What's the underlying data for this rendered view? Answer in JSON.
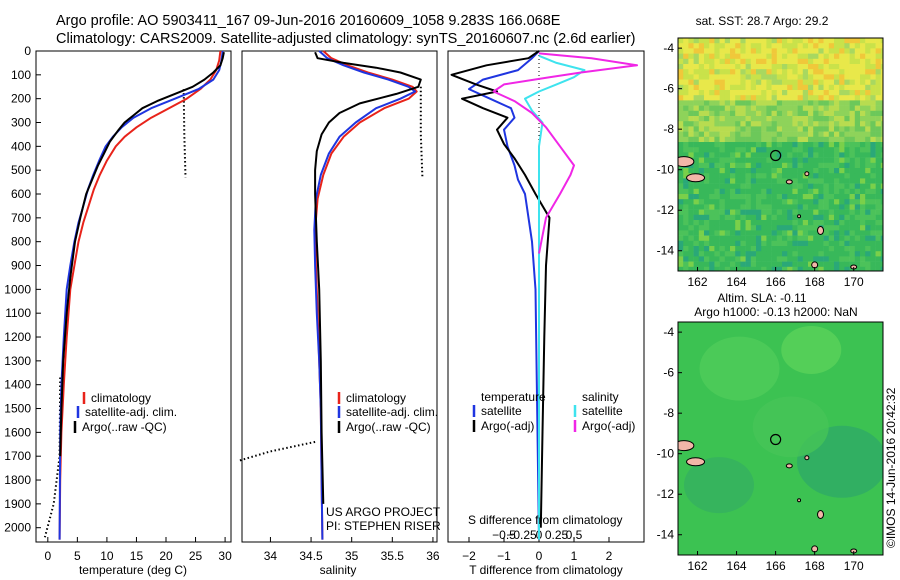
{
  "header": {
    "line1": "Argo profile: AO 5903411_167 09-Jun-2016 20160609_1058 9.283S 166.068E",
    "line2": "Climatology: CARS2009. Satellite-adjusted climatology: synTS_20160607.nc (2.6d earlier)"
  },
  "colors": {
    "climatology": "#e8231a",
    "satellite": "#1f35e0",
    "argo": "#000000",
    "sat_sal": "#3ee3ee",
    "argo_sal": "#f026e6"
  },
  "chart_data": [
    {
      "id": "temperature",
      "type": "line",
      "xlabel": "temperature (deg C)",
      "ylabel": "",
      "xlim": [
        -2,
        31
      ],
      "ylim": [
        2060,
        0
      ],
      "xticks": [
        0,
        5,
        10,
        15,
        20,
        25,
        30
      ],
      "yticks": [
        0,
        100,
        200,
        300,
        400,
        500,
        600,
        700,
        800,
        900,
        1000,
        1100,
        1200,
        1300,
        1400,
        1500,
        1600,
        1700,
        1800,
        1900,
        2000
      ],
      "legend": [
        "climatology",
        "satellite-adj. clim.",
        "Argo(..raw -QC)"
      ],
      "series": [
        {
          "name": "climatology",
          "x": [
            29.2,
            29.0,
            28.5,
            27.5,
            25.8,
            23.5,
            20.5,
            17.5,
            15.0,
            13.0,
            11.5,
            10.0,
            8.8,
            7.8,
            6.9,
            6.0,
            5.2,
            4.5,
            3.8,
            3.2,
            2.7,
            2.3,
            2.1,
            2.0
          ],
          "y": [
            0,
            40,
            80,
            120,
            160,
            200,
            240,
            280,
            320,
            360,
            400,
            460,
            520,
            580,
            650,
            720,
            800,
            900,
            1000,
            1200,
            1400,
            1600,
            1800,
            2050
          ]
        },
        {
          "name": "satellite-adj. clim.",
          "x": [
            29.6,
            29.4,
            29.0,
            28.0,
            25.5,
            21.5,
            17.5,
            14.5,
            12.5,
            11.0,
            9.8,
            8.7,
            7.7,
            6.8,
            6.0,
            5.2,
            4.5,
            3.8,
            3.2,
            2.7,
            2.3,
            2.1,
            2.0
          ],
          "y": [
            0,
            40,
            80,
            120,
            160,
            200,
            240,
            280,
            320,
            360,
            400,
            460,
            520,
            580,
            650,
            720,
            800,
            900,
            1000,
            1200,
            1400,
            1600,
            2050
          ]
        },
        {
          "name": "Argo(..raw -QC)",
          "x": [
            29.8,
            29.6,
            29.2,
            28.0,
            26.5,
            24.5,
            21.5,
            18.5,
            16.0,
            14.5,
            13.0,
            12.0,
            10.5,
            9.5,
            8.5,
            7.5,
            6.5,
            5.5,
            4.6,
            3.8,
            3.2,
            2.6,
            2.3,
            2.1
          ],
          "y": [
            5,
            30,
            60,
            90,
            120,
            150,
            180,
            210,
            240,
            270,
            300,
            330,
            380,
            430,
            480,
            540,
            600,
            700,
            800,
            950,
            1100,
            1300,
            1500,
            1700
          ]
        }
      ],
      "dotted": [
        {
          "x": [
            23.0,
            23.1,
            23.3
          ],
          "y": [
            160,
            350,
            530
          ]
        },
        {
          "x": [
            2.1,
            2.0,
            1.0,
            -0.5
          ],
          "y": [
            1370,
            1700,
            1900,
            2040
          ]
        }
      ]
    },
    {
      "id": "salinity",
      "type": "line",
      "xlabel": "salinity",
      "ylabel": "",
      "xlim": [
        33.65,
        36.05
      ],
      "ylim": [
        2060,
        0
      ],
      "xticks": [
        34,
        34.5,
        35,
        35.5,
        36
      ],
      "legend": [
        "climatology",
        "satellite-adj. clim.",
        "Argo(..raw -QC)"
      ],
      "annotation": [
        "US ARGO PROJECT",
        "PI: STEPHEN RISER"
      ],
      "series": [
        {
          "name": "climatology",
          "x": [
            34.65,
            34.75,
            34.95,
            35.2,
            35.5,
            35.75,
            35.8,
            35.7,
            35.4,
            35.1,
            34.9,
            34.75,
            34.65,
            34.58,
            34.55,
            34.56,
            34.58,
            34.6,
            34.62,
            34.63,
            34.64
          ],
          "y": [
            0,
            30,
            60,
            90,
            120,
            150,
            170,
            200,
            240,
            300,
            360,
            430,
            520,
            620,
            750,
            900,
            1100,
            1300,
            1500,
            1800,
            2050
          ]
        },
        {
          "name": "satellite-adj. clim.",
          "x": [
            34.6,
            34.7,
            34.9,
            35.15,
            35.45,
            35.7,
            35.78,
            35.6,
            35.3,
            35.05,
            34.85,
            34.72,
            34.62,
            34.56,
            34.54,
            34.55,
            34.57,
            34.6,
            34.62,
            34.63,
            34.64
          ],
          "y": [
            0,
            30,
            60,
            90,
            120,
            150,
            170,
            200,
            240,
            300,
            360,
            430,
            520,
            620,
            750,
            900,
            1100,
            1300,
            1500,
            1800,
            2050
          ]
        },
        {
          "name": "Argo(..raw -QC)",
          "x": [
            34.55,
            34.58,
            34.9,
            35.3,
            35.6,
            35.85,
            35.82,
            35.55,
            35.1,
            34.85,
            34.72,
            34.63,
            34.57,
            34.55,
            34.55,
            34.57,
            34.6,
            34.62,
            34.63,
            34.65
          ],
          "y": [
            5,
            30,
            50,
            70,
            90,
            120,
            150,
            180,
            220,
            260,
            300,
            350,
            420,
            500,
            600,
            800,
            1000,
            1300,
            1600,
            1900
          ]
        }
      ],
      "dotted": [
        {
          "x": [
            35.85,
            35.85,
            35.87
          ],
          "y": [
            150,
            350,
            530
          ]
        },
        {
          "x": [
            34.55,
            34.0,
            33.6
          ],
          "y": [
            1640,
            1680,
            1720
          ]
        }
      ]
    },
    {
      "id": "difference",
      "type": "line",
      "xlabel": "T difference from climatology",
      "ylabel": "",
      "title_bottom": "S difference from climatology",
      "xlim": [
        -2.6,
        3.0
      ],
      "ylim": [
        2060,
        0
      ],
      "xticks": [
        -2,
        -1,
        0,
        1,
        2
      ],
      "xtick_labels": [
        "−2",
        "−1",
        "0",
        "1",
        "2"
      ],
      "top_ticks": [
        "−0.5",
        "−0.25",
        "0",
        "0.25",
        "0.5"
      ],
      "legend": [
        "temperature",
        "satellite",
        "Argo(-adj)",
        "salinity",
        "satellite",
        "Argo(-adj)"
      ],
      "series": [
        {
          "name": "temperature satellite",
          "x": [
            0,
            -0.2,
            -0.6,
            -1.6,
            -2.0,
            -1.4,
            -0.8,
            -0.7,
            -1.0,
            -0.9,
            -0.7,
            -0.6,
            -0.4,
            -0.3,
            -0.2,
            -0.1,
            0
          ],
          "y": [
            0,
            30,
            80,
            120,
            160,
            200,
            240,
            280,
            330,
            400,
            480,
            540,
            600,
            700,
            800,
            1000,
            2050
          ]
        },
        {
          "name": "temperature Argo(-adj)",
          "x": [
            0,
            -0.3,
            -1.5,
            -2.5,
            -1.8,
            -1.2,
            -2.2,
            -1.6,
            -0.9,
            -1.2,
            -1.0,
            -0.7,
            -0.4,
            -0.1,
            0.3,
            0.2,
            0.15,
            0.1,
            0.05
          ],
          "y": [
            0,
            30,
            60,
            100,
            140,
            170,
            200,
            240,
            280,
            330,
            390,
            450,
            520,
            600,
            700,
            900,
            1200,
            1600,
            2000
          ]
        },
        {
          "name": "salinity satellite",
          "x": [
            0,
            0.5,
            1.3,
            1.0,
            0.5,
            0.0,
            -0.4,
            -0.2,
            0.1,
            0.0,
            0.0
          ],
          "y": [
            20,
            50,
            80,
            110,
            140,
            170,
            200,
            250,
            300,
            400,
            2050
          ]
        },
        {
          "name": "salinity Argo(-adj)",
          "x": [
            0,
            1.5,
            2.8,
            1.2,
            0.3,
            -1.0,
            -1.3,
            -0.7,
            -0.2,
            0.2,
            0.6,
            1.0,
            0.9,
            0.6,
            0.2,
            0.0
          ],
          "y": [
            10,
            30,
            60,
            90,
            110,
            140,
            170,
            210,
            260,
            320,
            400,
            480,
            520,
            600,
            700,
            850
          ]
        }
      ]
    },
    {
      "id": "sst",
      "type": "heatmap",
      "title": "sat. SST: 28.7  Argo: 29.2",
      "xlim": [
        161,
        171.5
      ],
      "ylim": [
        -15,
        -3.5
      ],
      "xticks": [
        162,
        164,
        166,
        168,
        170
      ],
      "yticks": [
        -4,
        -6,
        -8,
        -10,
        -12,
        -14
      ],
      "marker": [
        166,
        -9.3
      ]
    },
    {
      "id": "sla",
      "type": "heatmap",
      "title": "Altim. SLA: -0.11",
      "subtitle": "Argo h1000: -0.13 h2000: NaN",
      "xlim": [
        161,
        171.5
      ],
      "ylim": [
        -15,
        -3.5
      ],
      "xticks": [
        162,
        164,
        166,
        168,
        170
      ],
      "yticks": [
        -4,
        -6,
        -8,
        -10,
        -12,
        -14
      ],
      "marker": [
        166,
        -9.3
      ]
    }
  ],
  "credit": "©IMOS 14-Jun-2016 20:42:32"
}
